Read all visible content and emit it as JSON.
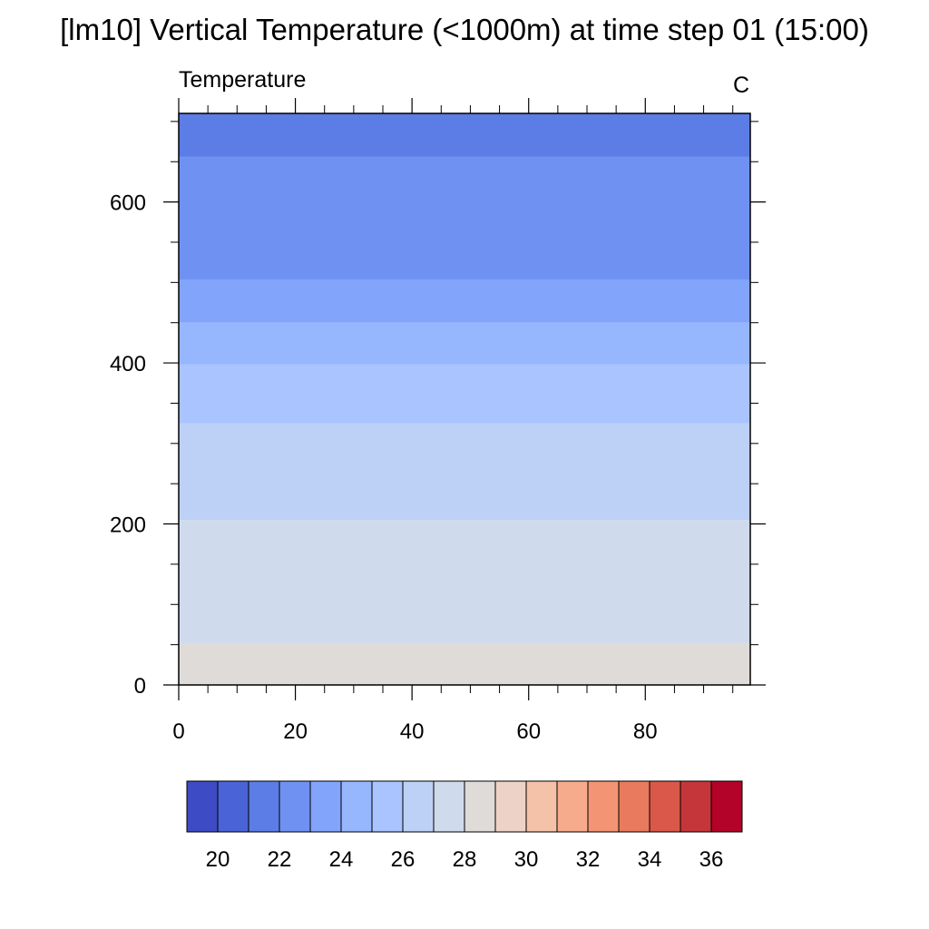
{
  "title": "[lm10] Vertical Temperature (<1000m) at time step 01 (15:00)",
  "left_label": "Temperature",
  "right_label": "C",
  "chart_data": {
    "type": "heatmap",
    "title": "[lm10] Vertical Temperature (<1000m) at time step 01 (15:00)",
    "xlabel": "",
    "ylabel": "",
    "xlim": [
      0,
      98
    ],
    "ylim": [
      0,
      710
    ],
    "x_ticks": [
      0,
      20,
      40,
      60,
      80
    ],
    "y_ticks": [
      0,
      200,
      400,
      600
    ],
    "layers": [
      {
        "y0": 0,
        "y1": 52,
        "color": "#dfdbd9"
      },
      {
        "y0": 52,
        "y1": 205,
        "color": "#cfdaed"
      },
      {
        "y0": 205,
        "y1": 325,
        "color": "#bdd0f6"
      },
      {
        "y0": 325,
        "y1": 398,
        "color": "#a9c4fe"
      },
      {
        "y0": 398,
        "y1": 450,
        "color": "#96b6fe"
      },
      {
        "y0": 450,
        "y1": 503,
        "color": "#82a4fb"
      },
      {
        "y0": 503,
        "y1": 656,
        "color": "#6f92f2"
      },
      {
        "y0": 656,
        "y1": 710,
        "color": "#5b7de5"
      }
    ],
    "colorbar": {
      "colors": [
        "#3d4cc4",
        "#4a64d8",
        "#5b7de5",
        "#6f92f2",
        "#82a4fb",
        "#96b6fe",
        "#a9c4fe",
        "#bdd0f6",
        "#cfdaed",
        "#dfdbd9",
        "#ecd3c5",
        "#f4c1a9",
        "#f6ab8d",
        "#f39474",
        "#e97a5e",
        "#d9584a",
        "#c5363a",
        "#b30328"
      ],
      "labels": [
        "20",
        "22",
        "24",
        "26",
        "28",
        "30",
        "32",
        "34",
        "36"
      ]
    }
  }
}
